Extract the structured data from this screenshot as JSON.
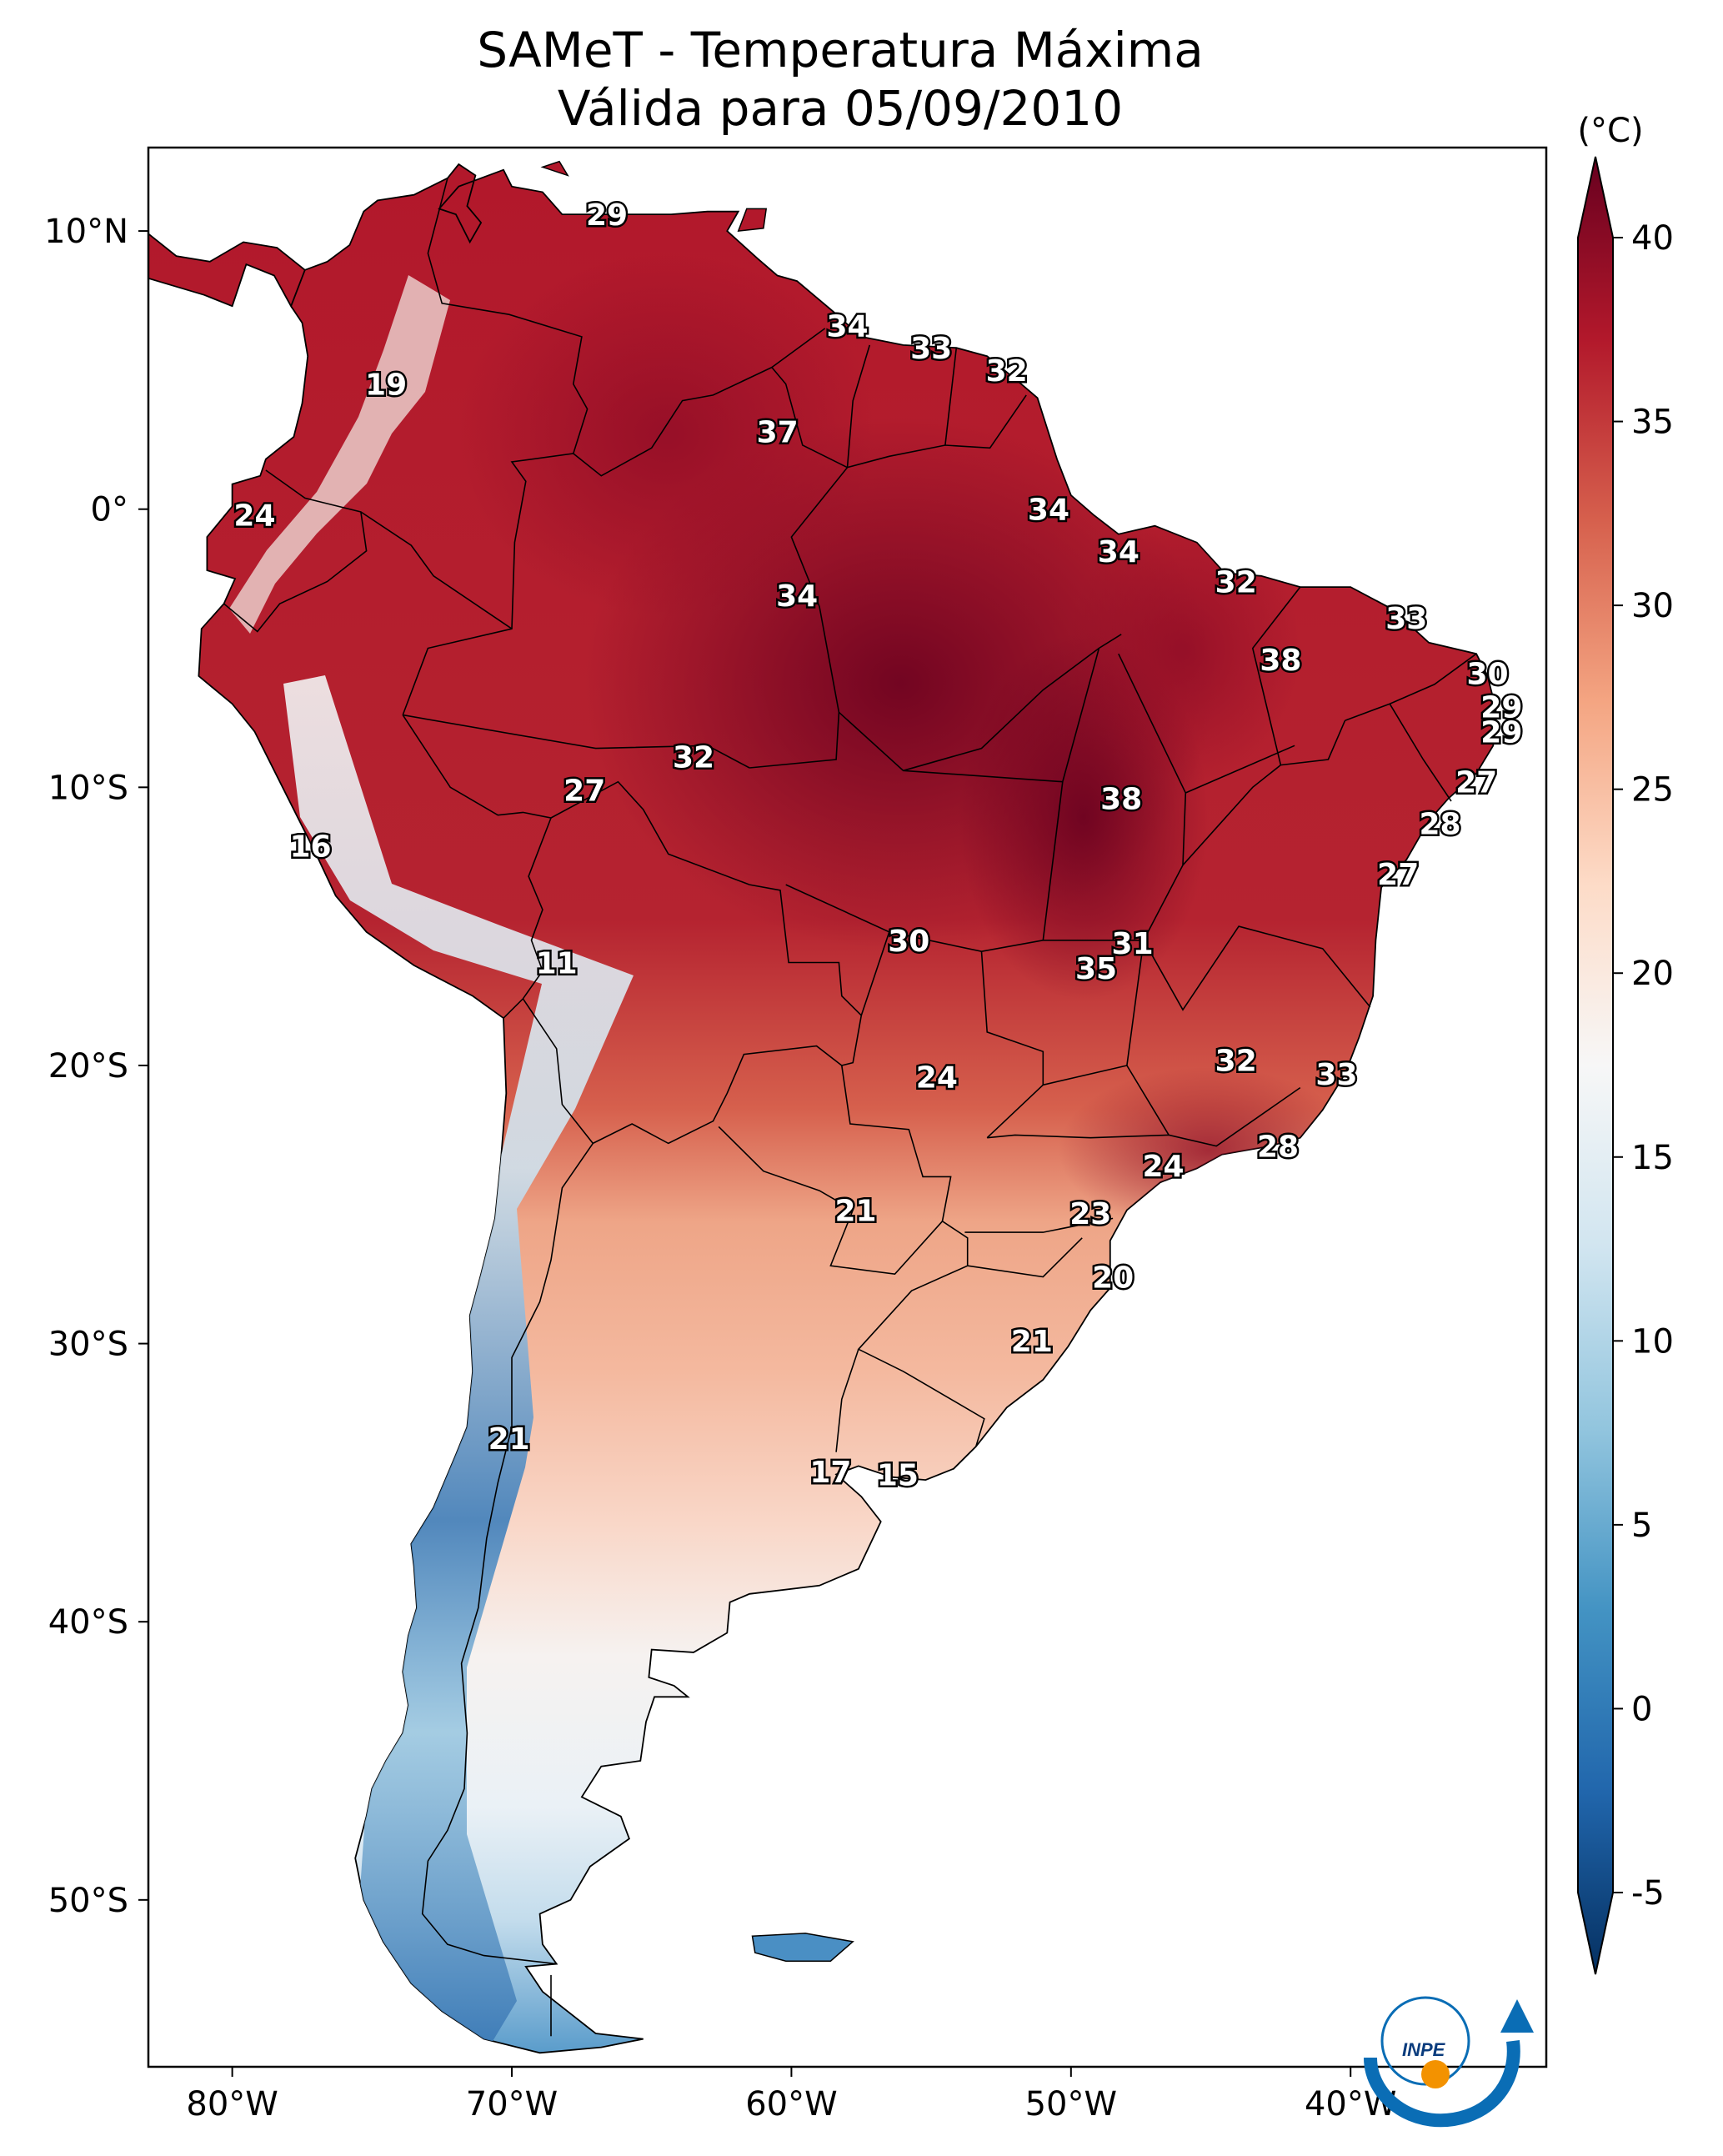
{
  "title": {
    "line1": "SAMeT - Temperatura Máxima",
    "line2": "Válida para 05/09/2010"
  },
  "map": {
    "lat_ticks": [
      "10°N",
      "0°",
      "10°S",
      "20°S",
      "30°S",
      "40°S",
      "50°S"
    ],
    "lon_ticks": [
      "80°W",
      "70°W",
      "60°W",
      "50°W",
      "40°W"
    ],
    "lat_values": [
      10,
      0,
      -10,
      -20,
      -30,
      -40,
      -50
    ],
    "lon_values": [
      -80,
      -70,
      -60,
      -50,
      -40
    ],
    "extent": {
      "lon_min": -83,
      "lon_max": -33,
      "lat_min": -56,
      "lat_max": 13
    }
  },
  "colorbar": {
    "unit": "(°C)",
    "ticks": [
      "40",
      "35",
      "30",
      "25",
      "20",
      "15",
      "10",
      "5",
      "0",
      "-5"
    ],
    "tick_values": [
      40,
      35,
      30,
      25,
      20,
      15,
      10,
      5,
      0,
      -5
    ],
    "vmin": -5,
    "vmax": 40,
    "colors": [
      "#053061",
      "#2166ac",
      "#4393c3",
      "#92c5de",
      "#d1e5f0",
      "#f7f7f7",
      "#fddbc7",
      "#f4a582",
      "#d6604d",
      "#b2182b",
      "#67001f"
    ]
  },
  "contour_labels": [
    {
      "text": "29",
      "lon": -66.6,
      "lat": 10.6
    },
    {
      "text": "19",
      "lon": -74.5,
      "lat": 4.5
    },
    {
      "text": "34",
      "lon": -58.0,
      "lat": 6.6
    },
    {
      "text": "33",
      "lon": -55.0,
      "lat": 5.8
    },
    {
      "text": "32",
      "lon": -52.3,
      "lat": 5.0
    },
    {
      "text": "37",
      "lon": -60.5,
      "lat": 2.8
    },
    {
      "text": "24",
      "lon": -79.2,
      "lat": -0.2
    },
    {
      "text": "34",
      "lon": -50.8,
      "lat": 0.0
    },
    {
      "text": "34",
      "lon": -48.3,
      "lat": -1.5
    },
    {
      "text": "32",
      "lon": -44.1,
      "lat": -2.6
    },
    {
      "text": "34",
      "lon": -59.8,
      "lat": -3.1
    },
    {
      "text": "33",
      "lon": -38.0,
      "lat": -3.9
    },
    {
      "text": "38",
      "lon": -42.5,
      "lat": -5.4
    },
    {
      "text": "30",
      "lon": -35.1,
      "lat": -5.9
    },
    {
      "text": "29",
      "lon": -34.6,
      "lat": -7.1
    },
    {
      "text": "29",
      "lon": -34.6,
      "lat": -8.0
    },
    {
      "text": "32",
      "lon": -63.5,
      "lat": -8.9
    },
    {
      "text": "27",
      "lon": -67.4,
      "lat": -10.1
    },
    {
      "text": "27",
      "lon": -35.5,
      "lat": -9.8
    },
    {
      "text": "38",
      "lon": -48.2,
      "lat": -10.4
    },
    {
      "text": "28",
      "lon": -36.8,
      "lat": -11.3
    },
    {
      "text": "16",
      "lon": -77.2,
      "lat": -12.1
    },
    {
      "text": "27",
      "lon": -38.3,
      "lat": -13.1
    },
    {
      "text": "31",
      "lon": -47.8,
      "lat": -15.6
    },
    {
      "text": "30",
      "lon": -55.8,
      "lat": -15.5
    },
    {
      "text": "35",
      "lon": -49.1,
      "lat": -16.5
    },
    {
      "text": "11",
      "lon": -68.4,
      "lat": -16.3
    },
    {
      "text": "32",
      "lon": -44.1,
      "lat": -19.8
    },
    {
      "text": "33",
      "lon": -40.5,
      "lat": -20.3
    },
    {
      "text": "24",
      "lon": -54.8,
      "lat": -20.4
    },
    {
      "text": "28",
      "lon": -42.6,
      "lat": -22.9
    },
    {
      "text": "24",
      "lon": -46.7,
      "lat": -23.6
    },
    {
      "text": "21",
      "lon": -57.7,
      "lat": -25.2
    },
    {
      "text": "23",
      "lon": -49.3,
      "lat": -25.3
    },
    {
      "text": "20",
      "lon": -48.5,
      "lat": -27.6
    },
    {
      "text": "21",
      "lon": -51.4,
      "lat": -29.9
    },
    {
      "text": "21",
      "lon": -70.1,
      "lat": -33.4
    },
    {
      "text": "17",
      "lon": -58.6,
      "lat": -34.6
    },
    {
      "text": "15",
      "lon": -56.2,
      "lat": -34.7
    }
  ],
  "logo": {
    "text": "INPE"
  }
}
